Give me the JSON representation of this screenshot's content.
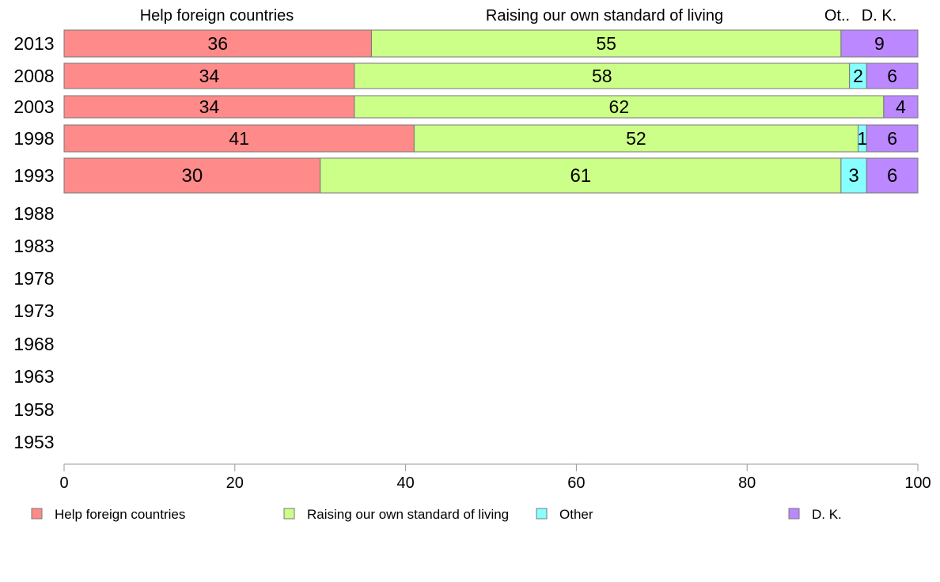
{
  "chart_data": {
    "type": "bar",
    "orientation": "horizontal",
    "stacked": true,
    "categories": [
      "2013",
      "2008",
      "2003",
      "1998",
      "1993",
      "1988",
      "1983",
      "1978",
      "1973",
      "1968",
      "1963",
      "1958",
      "1953"
    ],
    "series": [
      {
        "name": "Help foreign countries",
        "color": "#ff8a8a",
        "values": [
          36,
          34,
          34,
          41,
          30,
          null,
          null,
          null,
          null,
          null,
          null,
          null,
          null
        ],
        "labels": [
          "36",
          "34",
          "34",
          "41",
          "30",
          "",
          "",
          "",
          "",
          "",
          "",
          "",
          ""
        ]
      },
      {
        "name": "Raising our own standard of living",
        "color": "#ccff88",
        "values": [
          55,
          58,
          62,
          52,
          61,
          null,
          null,
          null,
          null,
          null,
          null,
          null,
          null
        ],
        "labels": [
          "55",
          "58",
          "62",
          "52",
          "61",
          "",
          "",
          "",
          "",
          "",
          "",
          "",
          ""
        ]
      },
      {
        "name": "Other",
        "color": "#88ffff",
        "values": [
          0,
          2,
          0,
          1,
          3,
          null,
          null,
          null,
          null,
          null,
          null,
          null,
          null
        ],
        "labels": [
          "",
          "2",
          "",
          "1",
          "3",
          "",
          "",
          "",
          "",
          "",
          "",
          "",
          ""
        ]
      },
      {
        "name": "D. K.",
        "color": "#bb88ff",
        "values": [
          9,
          6,
          4,
          6,
          6,
          null,
          null,
          null,
          null,
          null,
          null,
          null,
          null
        ],
        "labels": [
          "9",
          "6",
          "4",
          "6",
          "6",
          "",
          "",
          "",
          "",
          "",
          "",
          "",
          ""
        ]
      }
    ],
    "top_labels": [
      "Help foreign countries",
      "Raising our own standard of living",
      "Ot..",
      "D. K."
    ],
    "xlim": [
      0,
      100
    ],
    "xticks": [
      "0",
      "20",
      "40",
      "60",
      "80",
      "100"
    ],
    "grid": false,
    "legend": "bottom",
    "title": "",
    "xlabel": "",
    "ylabel": ""
  }
}
